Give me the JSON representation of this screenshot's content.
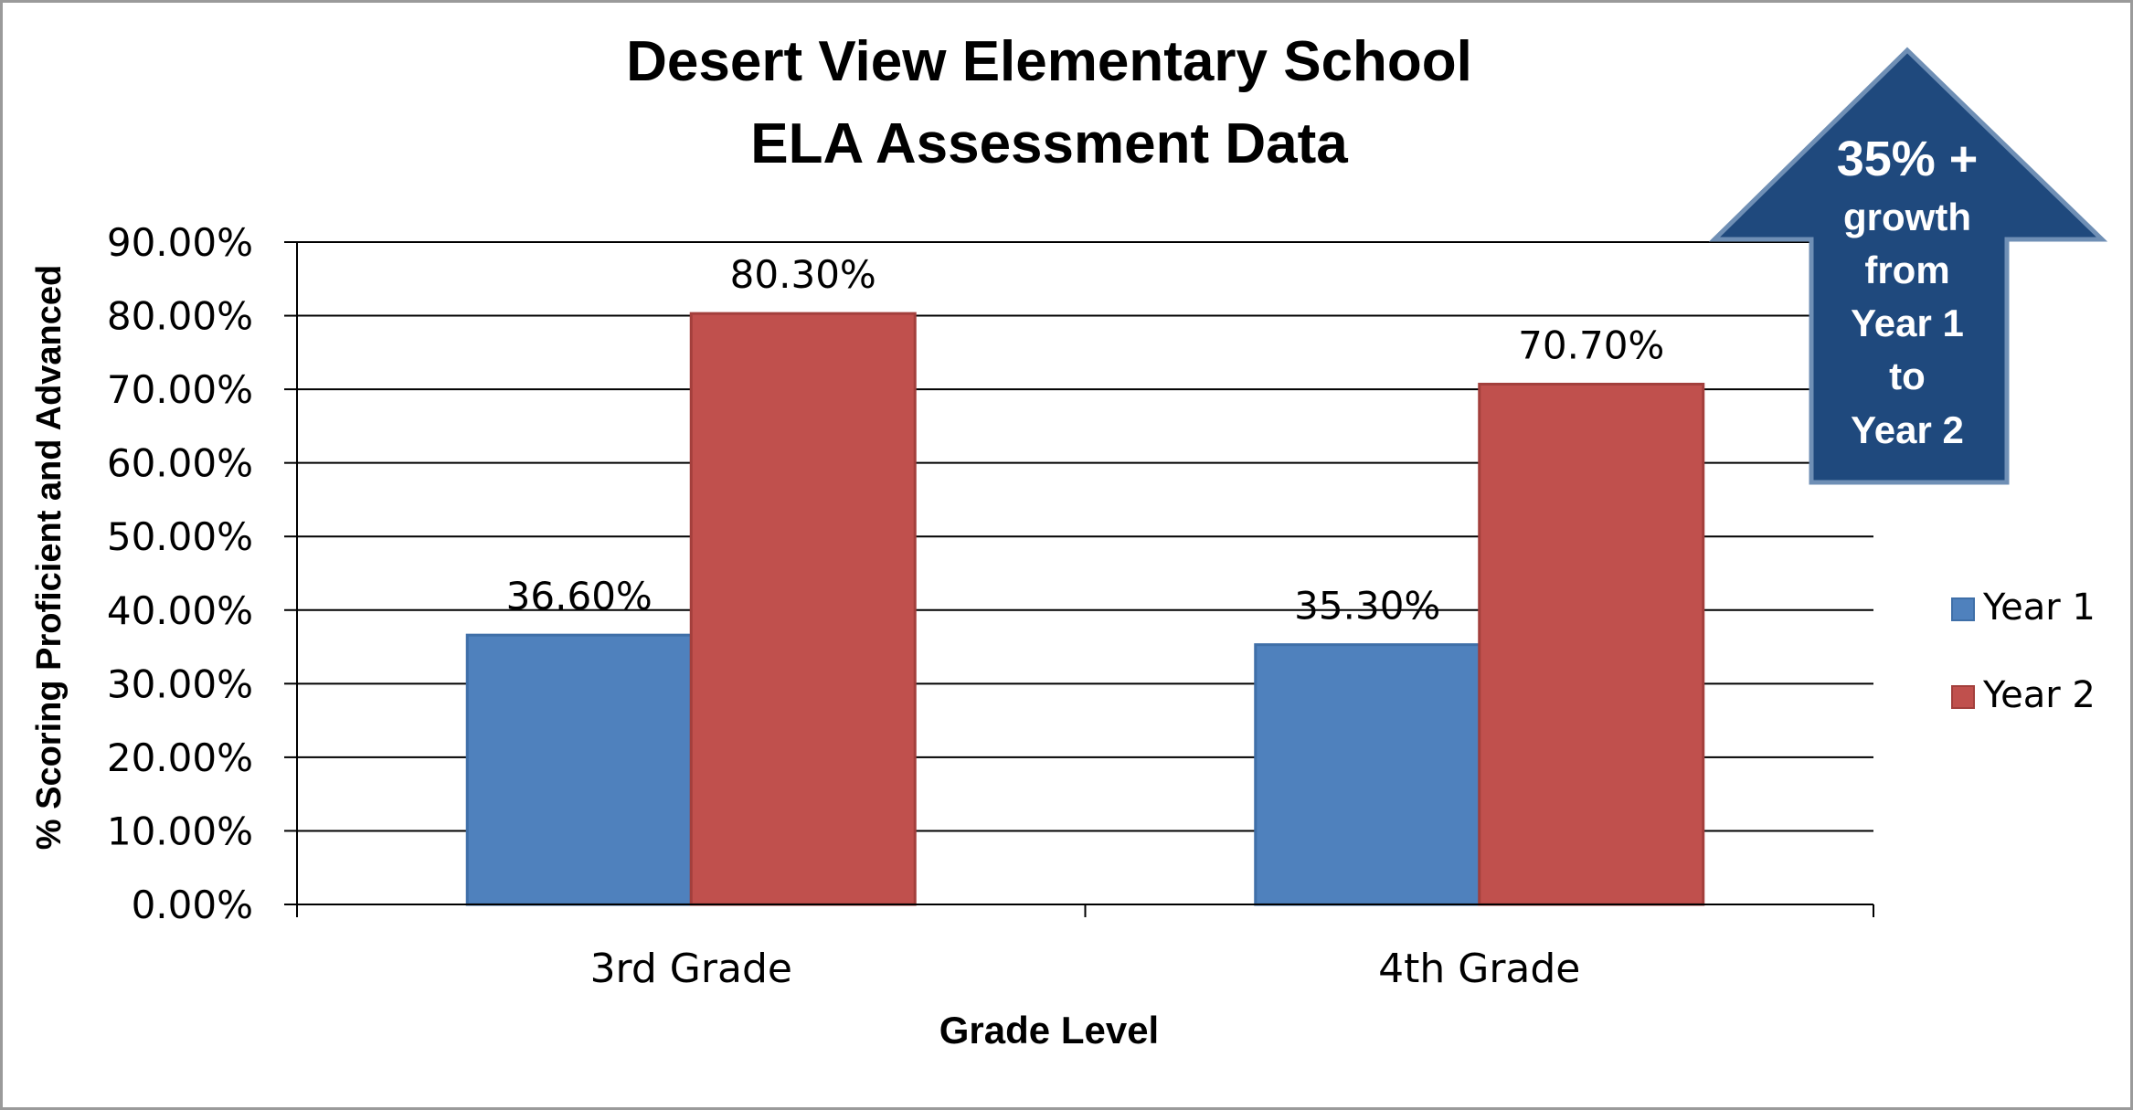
{
  "chart_data": {
    "type": "bar",
    "title_lines": [
      "Desert View Elementary School",
      "ELA Assessment Data"
    ],
    "xlabel": "Grade Level",
    "ylabel": "% Scoring Proficient and Advanced",
    "categories": [
      "3rd Grade",
      "4th Grade"
    ],
    "series": [
      {
        "name": "Year 1",
        "values": [
          36.6,
          35.3
        ],
        "labels": [
          "36.60%",
          "35.30%"
        ],
        "color": "#4f81bd"
      },
      {
        "name": "Year 2",
        "values": [
          80.3,
          70.7
        ],
        "labels": [
          "80.30%",
          "70.70%"
        ],
        "color": "#c0504d"
      }
    ],
    "ylim": [
      0,
      90
    ],
    "yticks": [
      0,
      10,
      20,
      30,
      40,
      50,
      60,
      70,
      80,
      90
    ],
    "ytick_labels": [
      "0.00%",
      "10.00%",
      "20.00%",
      "30.00%",
      "40.00%",
      "50.00%",
      "60.00%",
      "70.00%",
      "80.00%",
      "90.00%"
    ],
    "grid": true,
    "legend_position": "right"
  },
  "callout": {
    "lines": [
      "35% +",
      "growth",
      "from",
      "Year 1",
      "to",
      "Year 2"
    ],
    "color": "#1f497d"
  }
}
